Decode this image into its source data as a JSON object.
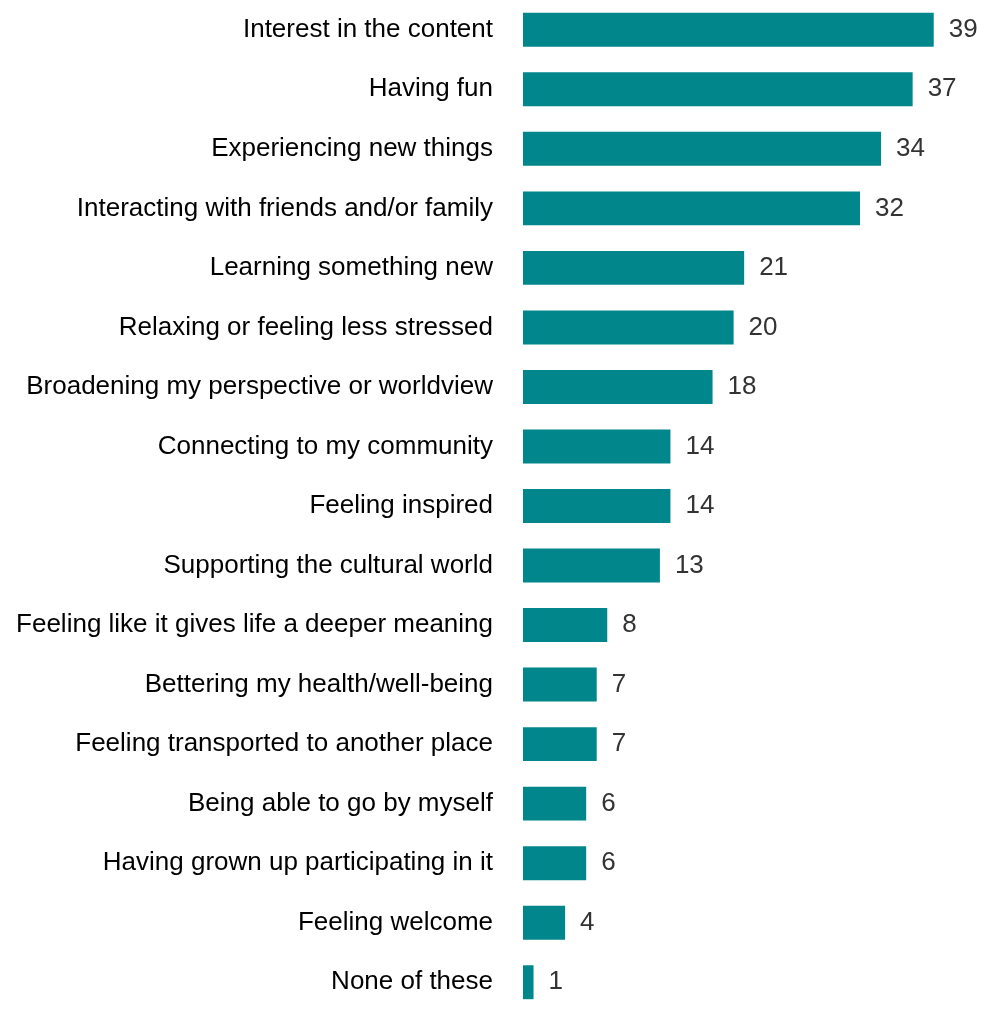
{
  "chart_data": {
    "type": "bar",
    "orientation": "horizontal",
    "categories": [
      "Interest in the content",
      "Having fun",
      "Experiencing new things",
      "Interacting with friends and/or family",
      "Learning something new",
      "Relaxing or feeling less stressed",
      "Broadening my perspective or worldview",
      "Connecting to my community",
      "Feeling inspired",
      "Supporting the cultural world",
      "Feeling like it gives life a deeper meaning",
      "Bettering my health/well-being",
      "Feeling transported to another place",
      "Being able to go by myself",
      "Having grown up participating in it",
      "Feeling welcome",
      "None of these"
    ],
    "values": [
      39,
      37,
      34,
      32,
      21,
      20,
      18,
      14,
      14,
      13,
      8,
      7,
      7,
      6,
      6,
      4,
      1
    ],
    "color": "#00868b",
    "data_labels": true
  }
}
